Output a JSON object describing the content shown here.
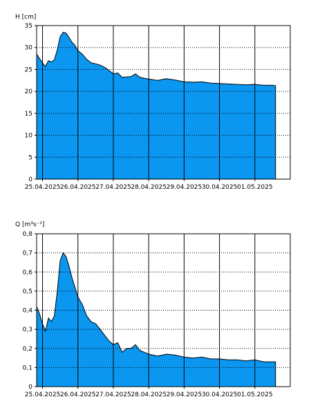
{
  "colors": {
    "fill": "#0b96f0",
    "outline": "#000000",
    "grid": "#000000",
    "background": "#ffffff"
  },
  "chart_data": [
    {
      "type": "area",
      "ylabel": "H [cm]",
      "ylim": [
        0,
        35
      ],
      "yticks": [
        "0",
        "5",
        "10",
        "15",
        "20",
        "25",
        "30",
        "35"
      ],
      "xlim": [
        "24.04.2025 20:00",
        "02.05.2025 00:00"
      ],
      "xticks": [
        "25.04.2025",
        "26.04.2025",
        "27.04.2025",
        "28.04.2025",
        "29.04.2025",
        "30.04.2025",
        "01.05.2025"
      ],
      "grid": {
        "vertical": "solid at day boundaries",
        "horizontal": "dotted"
      },
      "series": [
        {
          "x": [
            "24.04.2025 20:00",
            "24.04.2025 22:00",
            "25.04.2025 00:00",
            "25.04.2025 02:00",
            "25.04.2025 04:00",
            "25.04.2025 06:00",
            "25.04.2025 08:00",
            "25.04.2025 10:00",
            "25.04.2025 12:00",
            "25.04.2025 14:00",
            "25.04.2025 16:00",
            "25.04.2025 18:00",
            "25.04.2025 20:00",
            "25.04.2025 22:00",
            "26.04.2025 00:00",
            "26.04.2025 03:00",
            "26.04.2025 06:00",
            "26.04.2025 09:00",
            "26.04.2025 12:00",
            "26.04.2025 15:00",
            "26.04.2025 18:00",
            "26.04.2025 21:00",
            "27.04.2025 00:00",
            "27.04.2025 03:00",
            "27.04.2025 06:00",
            "27.04.2025 09:00",
            "27.04.2025 12:00",
            "27.04.2025 15:00",
            "27.04.2025 18:00",
            "27.04.2025 21:00",
            "28.04.2025 00:00",
            "28.04.2025 06:00",
            "28.04.2025 12:00",
            "28.04.2025 18:00",
            "29.04.2025 00:00",
            "29.04.2025 06:00",
            "29.04.2025 12:00",
            "29.04.2025 18:00",
            "30.04.2025 00:00",
            "30.04.2025 06:00",
            "30.04.2025 12:00",
            "30.04.2025 18:00",
            "01.05.2025 00:00",
            "01.05.2025 06:00",
            "01.05.2025 12:00",
            "01.05.2025 14:00"
          ],
          "y": [
            28.5,
            27.5,
            26.5,
            25.7,
            27.0,
            26.7,
            27.2,
            29.5,
            32.5,
            33.5,
            33.3,
            32.3,
            31.2,
            30.5,
            29.3,
            28.5,
            27.3,
            26.5,
            26.3,
            26.0,
            25.5,
            24.8,
            24.0,
            24.2,
            23.2,
            23.3,
            23.4,
            24.0,
            23.2,
            23.0,
            22.8,
            22.5,
            22.9,
            22.6,
            22.2,
            22.1,
            22.2,
            21.9,
            21.8,
            21.7,
            21.6,
            21.5,
            21.6,
            21.4,
            21.4,
            21.3
          ]
        }
      ]
    },
    {
      "type": "area",
      "ylabel": "Q [m³s⁻¹]",
      "ylim": [
        0,
        0.8
      ],
      "yticks": [
        "0",
        "0,1",
        "0,2",
        "0,3",
        "0,4",
        "0,5",
        "0,6",
        "0,7",
        "0,8"
      ],
      "xlim": [
        "24.04.2025 20:00",
        "02.05.2025 00:00"
      ],
      "xticks": [
        "25.04.2025",
        "26.04.2025",
        "27.04.2025",
        "28.04.2025",
        "29.04.2025",
        "30.04.2025",
        "01.05.2025"
      ],
      "grid": {
        "vertical": "solid at day boundaries",
        "horizontal": "dotted"
      },
      "series": [
        {
          "x": [
            "24.04.2025 20:00",
            "24.04.2025 22:00",
            "25.04.2025 00:00",
            "25.04.2025 02:00",
            "25.04.2025 04:00",
            "25.04.2025 06:00",
            "25.04.2025 08:00",
            "25.04.2025 10:00",
            "25.04.2025 12:00",
            "25.04.2025 14:00",
            "25.04.2025 16:00",
            "25.04.2025 18:00",
            "25.04.2025 20:00",
            "25.04.2025 22:00",
            "26.04.2025 00:00",
            "26.04.2025 03:00",
            "26.04.2025 06:00",
            "26.04.2025 09:00",
            "26.04.2025 12:00",
            "26.04.2025 15:00",
            "26.04.2025 18:00",
            "26.04.2025 21:00",
            "27.04.2025 00:00",
            "27.04.2025 03:00",
            "27.04.2025 06:00",
            "27.04.2025 09:00",
            "27.04.2025 12:00",
            "27.04.2025 15:00",
            "27.04.2025 18:00",
            "27.04.2025 21:00",
            "28.04.2025 00:00",
            "28.04.2025 06:00",
            "28.04.2025 12:00",
            "28.04.2025 18:00",
            "29.04.2025 00:00",
            "29.04.2025 06:00",
            "29.04.2025 12:00",
            "29.04.2025 18:00",
            "30.04.2025 00:00",
            "30.04.2025 06:00",
            "30.04.2025 12:00",
            "30.04.2025 18:00",
            "01.05.2025 00:00",
            "01.05.2025 06:00",
            "01.05.2025 12:00",
            "01.05.2025 14:00"
          ],
          "y": [
            0.42,
            0.38,
            0.33,
            0.29,
            0.36,
            0.34,
            0.37,
            0.5,
            0.66,
            0.7,
            0.68,
            0.63,
            0.57,
            0.52,
            0.47,
            0.43,
            0.37,
            0.34,
            0.33,
            0.3,
            0.27,
            0.24,
            0.22,
            0.23,
            0.18,
            0.2,
            0.2,
            0.22,
            0.19,
            0.18,
            0.17,
            0.16,
            0.17,
            0.165,
            0.155,
            0.15,
            0.155,
            0.145,
            0.145,
            0.14,
            0.14,
            0.135,
            0.14,
            0.13,
            0.13,
            0.13
          ]
        }
      ]
    }
  ]
}
